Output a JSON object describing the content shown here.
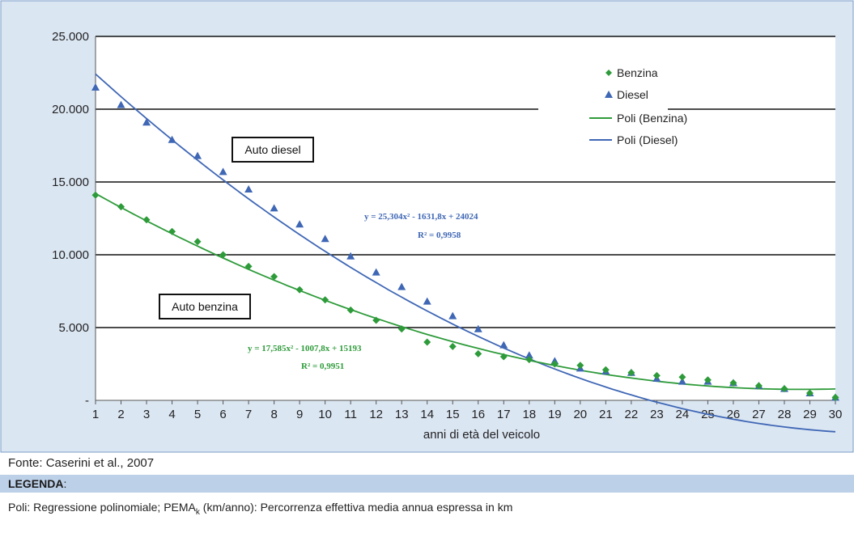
{
  "chart_data": {
    "type": "scatter",
    "x": [
      1,
      2,
      3,
      4,
      5,
      6,
      7,
      8,
      9,
      10,
      11,
      12,
      13,
      14,
      15,
      16,
      17,
      18,
      19,
      20,
      21,
      22,
      23,
      24,
      25,
      26,
      27,
      28,
      29,
      30
    ],
    "xlabel": "anni di età del veicolo",
    "ylim": [
      0,
      25000
    ],
    "yticks": [
      "-",
      "5.000",
      "10.000",
      "15.000",
      "20.000",
      "25.000"
    ],
    "ytick_values": [
      0,
      5000,
      10000,
      15000,
      20000,
      25000
    ],
    "grid": true,
    "legend_position": "top-right",
    "series": [
      {
        "name": "Benzina",
        "marker": "diamond",
        "color": "#2e9b3a",
        "values": [
          14100,
          13300,
          12400,
          11600,
          10900,
          10000,
          9200,
          8500,
          7600,
          6900,
          6200,
          5500,
          4900,
          4000,
          3700,
          3200,
          3000,
          2800,
          2500,
          2400,
          2100,
          1900,
          1700,
          1600,
          1400,
          1200,
          1000,
          800,
          500,
          200
        ]
      },
      {
        "name": "Diesel",
        "marker": "triangle",
        "color": "#3f67b5",
        "values": [
          21500,
          20300,
          19100,
          17900,
          16800,
          15700,
          14500,
          13200,
          12100,
          11100,
          9900,
          8800,
          7800,
          6800,
          5800,
          4900,
          3800,
          3100,
          2700,
          2200,
          2000,
          1900,
          1500,
          1300,
          1300,
          1200,
          1000,
          800,
          500,
          200
        ]
      },
      {
        "name": "Poli (Benzina)",
        "type": "line",
        "color": "#2e9b3a",
        "poly": [
          17.585,
          -1007.8,
          15193
        ]
      },
      {
        "name": "Poli (Diesel)",
        "type": "line",
        "color": "#3f67b5",
        "poly": [
          25.304,
          -1631.8,
          24024
        ]
      }
    ],
    "annotations": [
      {
        "text": "Auto diesel",
        "boxed": true
      },
      {
        "text": "Auto benzina",
        "boxed": true
      },
      {
        "text": "y = 25,304x² - 1631,8x + 24024",
        "color": "#3f67b5"
      },
      {
        "text": "R² = 0,9958",
        "color": "#3f67b5"
      },
      {
        "text": "y = 17,585x² - 1007,8x + 15193",
        "color": "#2e9b3a"
      },
      {
        "text": "R² = 0,9951",
        "color": "#2e9b3a"
      }
    ]
  },
  "source": "Fonte: Caserini et al., 2007",
  "legenda_title": "LEGENDA",
  "legenda_colon": ":",
  "legenda_text_1": "Poli: Regressione polinomiale; PEMA",
  "legenda_sub": "k",
  "legenda_text_2": " (km/anno): Percorrenza effettiva media annua espressa in km",
  "colors": {
    "background": "#dbe6f3",
    "plot_area": "#ffffff",
    "legend_bar": "#bcd0e8",
    "frame_border": "#7a9cc8"
  }
}
